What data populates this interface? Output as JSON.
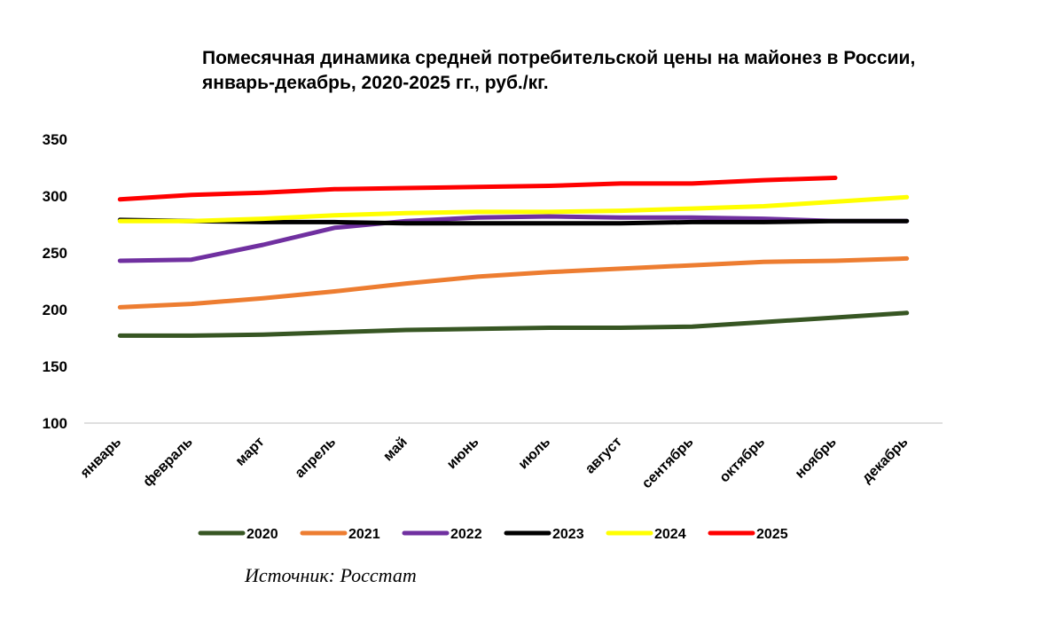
{
  "chart_data": {
    "type": "line",
    "title": "Помесячная динамика средней потребительской цены на майонез в России, январь-декабрь, 2020-2025 гг., руб./кг.",
    "categories": [
      "январь",
      "февраль",
      "март",
      "апрель",
      "май",
      "июнь",
      "июль",
      "август",
      "сентябрь",
      "октябрь",
      "ноябрь",
      "декабрь"
    ],
    "yticks": [
      100,
      150,
      200,
      250,
      300,
      350
    ],
    "ylim": [
      100,
      350
    ],
    "legend_position": "bottom",
    "series": [
      {
        "name": "2020",
        "color": "#375623",
        "values": [
          177,
          177,
          178,
          180,
          182,
          183,
          184,
          184,
          185,
          189,
          193,
          197
        ]
      },
      {
        "name": "2021",
        "color": "#ED7D31",
        "values": [
          202,
          205,
          210,
          216,
          223,
          229,
          233,
          236,
          239,
          242,
          243,
          245
        ]
      },
      {
        "name": "2022",
        "color": "#7030A0",
        "values": [
          243,
          244,
          257,
          272,
          278,
          281,
          282,
          281,
          281,
          280,
          278,
          278
        ]
      },
      {
        "name": "2023",
        "color": "#000000",
        "values": [
          279,
          278,
          277,
          277,
          276,
          276,
          276,
          276,
          277,
          277,
          278,
          278
        ]
      },
      {
        "name": "2024",
        "color": "#FFFF00",
        "values": [
          278,
          278,
          280,
          283,
          285,
          286,
          286,
          287,
          289,
          291,
          295,
          299
        ]
      },
      {
        "name": "2025",
        "color": "#FF0000",
        "values": [
          297,
          301,
          303,
          306,
          307,
          308,
          309,
          311,
          311,
          314,
          316,
          null
        ]
      }
    ]
  },
  "source": "Источник: Росстат"
}
